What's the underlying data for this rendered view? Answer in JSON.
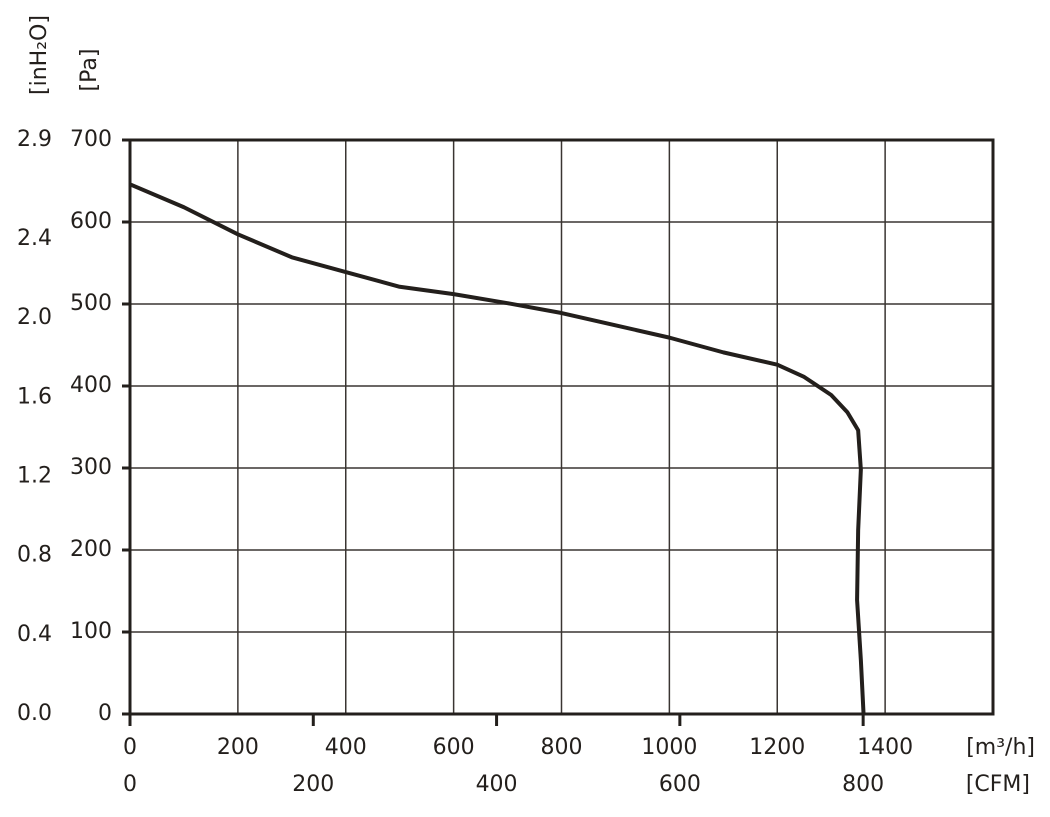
{
  "chart_data": {
    "type": "line",
    "x_label": "[m³/h]",
    "x2_label": "[CFM]",
    "y_label": "[Pa]",
    "y2_label": "[inH₂O]",
    "x": [
      0,
      100,
      200,
      300,
      400,
      500,
      600,
      700,
      800,
      900,
      1000,
      1100,
      1200,
      1250,
      1300,
      1330,
      1350,
      1355,
      1350,
      1348,
      1355,
      1360
    ],
    "series": [
      {
        "color": "#231f1c",
        "values": [
          646,
          618,
          585,
          557,
          539,
          521,
          512,
          501,
          489,
          474,
          459,
          441,
          426,
          411,
          389,
          368,
          346,
          298,
          224,
          139,
          66,
          0
        ]
      }
    ],
    "xlim": [
      0,
      1600
    ],
    "xticks": [
      0,
      200,
      400,
      600,
      800,
      1000,
      1200,
      1400
    ],
    "x2lim": [
      0,
      941.7
    ],
    "x2ticks": [
      0,
      200,
      400,
      600,
      800
    ],
    "ylim": [
      0,
      700
    ],
    "yticks": [
      0,
      100,
      200,
      300,
      400,
      500,
      600,
      700
    ],
    "y2lim": [
      0,
      2.9
    ],
    "y2ticks": [
      {
        "value": 0,
        "label": "0.0"
      },
      0.4,
      0.8,
      1.2,
      1.6,
      {
        "value": 2,
        "label": "2.0"
      },
      2.4,
      2.9
    ],
    "grid": true
  }
}
